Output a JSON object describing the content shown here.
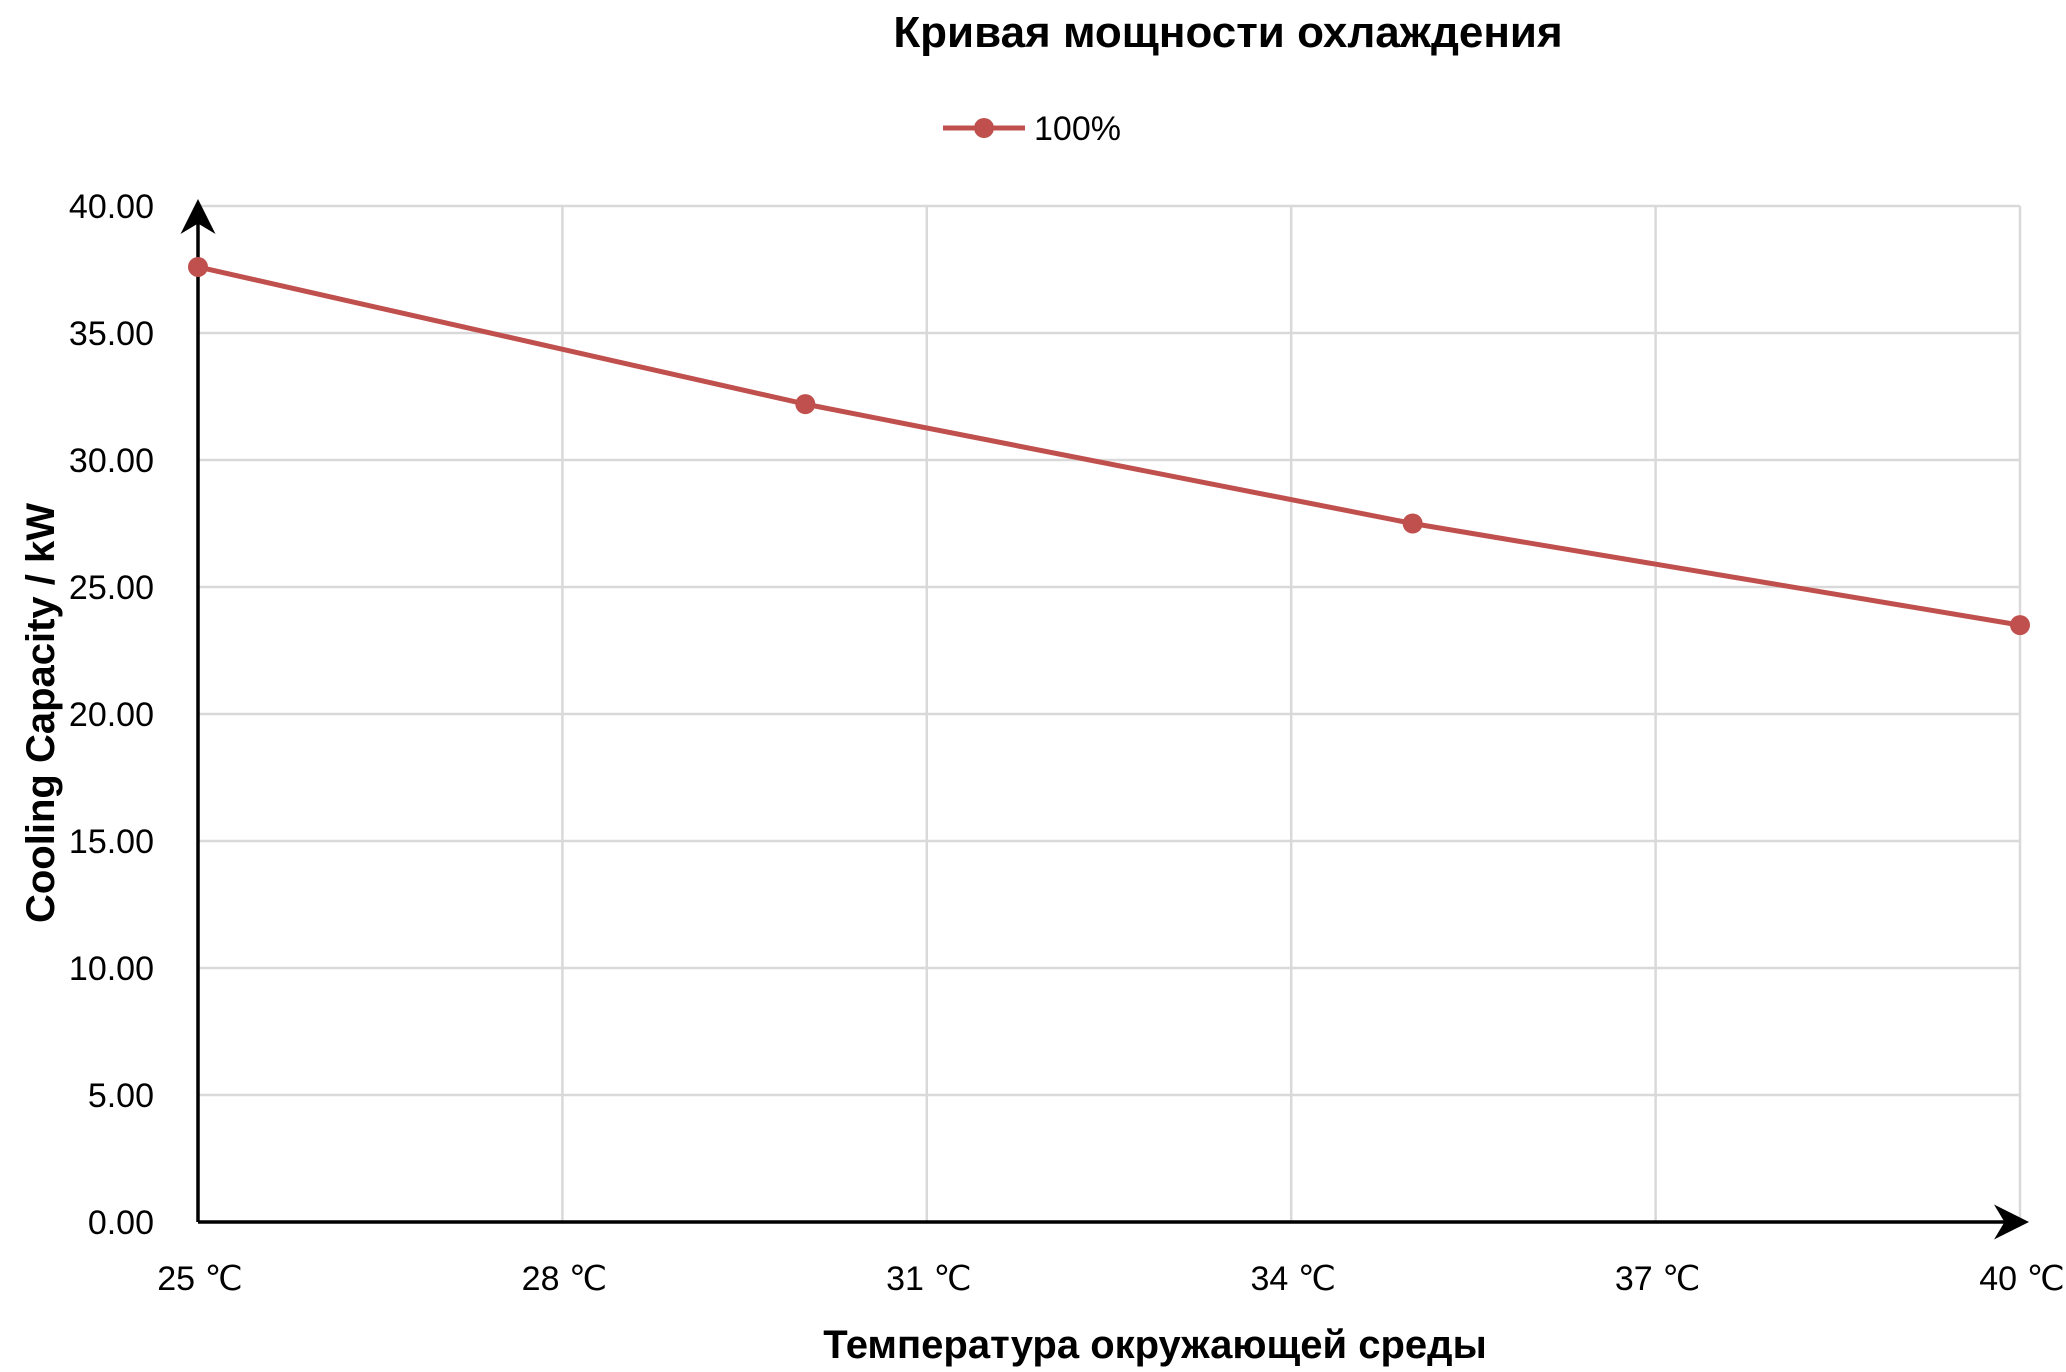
{
  "chart_data": {
    "type": "line",
    "title": "Кривая мощности охлаждения",
    "xlabel": "Температура окружающей среды",
    "ylabel": "Cooling Capacity / kW",
    "x_ticks": [
      "25 ℃",
      "28 ℃",
      "31 ℃",
      "34 ℃",
      "37 ℃",
      "40 ℃"
    ],
    "x_tick_values": [
      25,
      28,
      31,
      34,
      37,
      40
    ],
    "xlim": [
      25,
      40
    ],
    "y_ticks": [
      "0.00",
      "5.00",
      "10.00",
      "15.00",
      "20.00",
      "25.00",
      "30.00",
      "35.00",
      "40.00"
    ],
    "y_tick_values": [
      0,
      5,
      10,
      15,
      20,
      25,
      30,
      35,
      40
    ],
    "ylim": [
      0,
      40
    ],
    "grid": true,
    "legend_position": "top-center",
    "series": [
      {
        "name": "100%",
        "color": "#c0504d",
        "x": [
          25,
          30,
          35,
          40
        ],
        "y": [
          37.6,
          32.2,
          27.5,
          23.5
        ]
      }
    ]
  }
}
